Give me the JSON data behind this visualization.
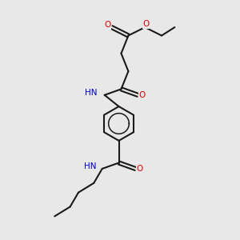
{
  "background_color": "#e8e8e8",
  "bond_color": "#1a1a1a",
  "oxygen_color": "#dd0000",
  "nitrogen_color": "#0000cc",
  "figsize": [
    3.0,
    3.0
  ],
  "dpi": 100,
  "xlim": [
    0,
    10
  ],
  "ylim": [
    0,
    10
  ]
}
